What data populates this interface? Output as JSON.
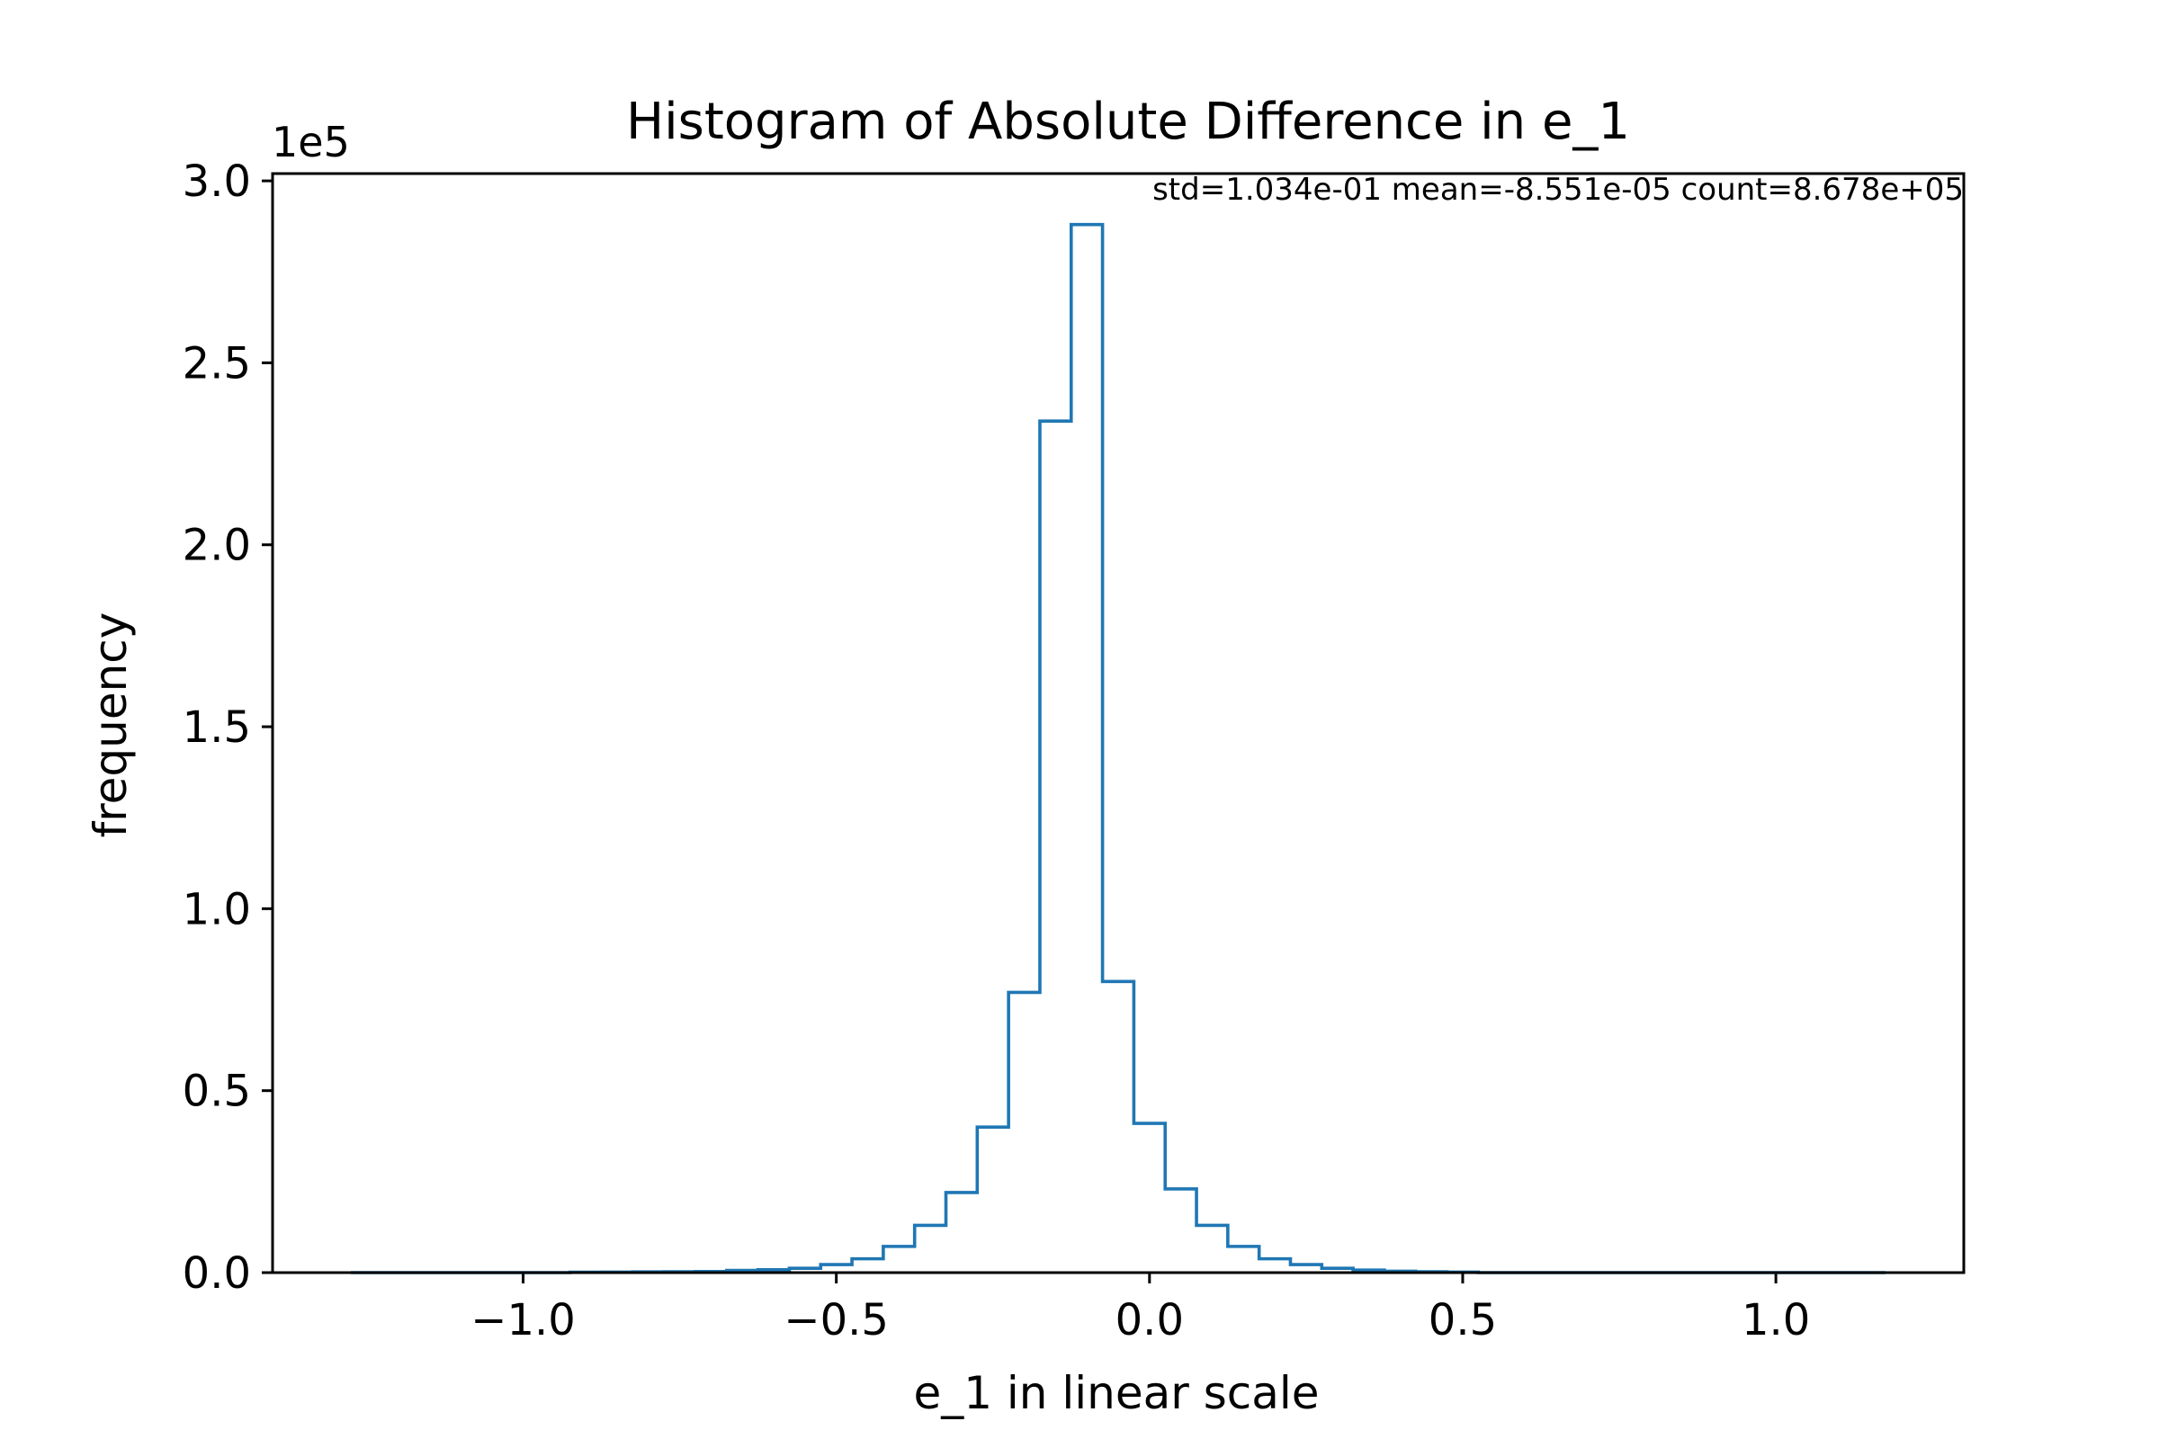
{
  "chart_data": {
    "type": "bar",
    "histtype": "step",
    "title": "Histogram of Absolute Difference in e_1",
    "xlabel": "e_1 in linear scale",
    "ylabel": "frequency",
    "y_multiplier_label": "1e5",
    "annotation": "std=1.034e-01 mean=-8.551e-05 count=8.678e+05",
    "color": "#1f77b4",
    "xlim": [
      -1.4,
      1.3
    ],
    "ylim": [
      0,
      302000
    ],
    "x_ticks": [
      {
        "value": -1.0,
        "label": "−1.0"
      },
      {
        "value": -0.5,
        "label": "−0.5"
      },
      {
        "value": 0.0,
        "label": "0.0"
      },
      {
        "value": 0.5,
        "label": "0.5"
      },
      {
        "value": 1.0,
        "label": "1.0"
      }
    ],
    "y_ticks": [
      {
        "value": 0,
        "label": "0.0"
      },
      {
        "value": 50000,
        "label": "0.5"
      },
      {
        "value": 100000,
        "label": "1.0"
      },
      {
        "value": 150000,
        "label": "1.5"
      },
      {
        "value": 200000,
        "label": "2.0"
      },
      {
        "value": 250000,
        "label": "2.5"
      },
      {
        "value": 300000,
        "label": "3.0"
      }
    ],
    "grid": false,
    "bin_start": -1.275,
    "bin_width": 0.05,
    "counts": [
      0,
      0,
      0,
      0,
      0,
      0,
      0,
      100,
      150,
      200,
      250,
      300,
      600,
      800,
      1200,
      2200,
      3800,
      7200,
      13000,
      22000,
      40000,
      77000,
      234000,
      288000,
      80000,
      41000,
      23000,
      13000,
      7200,
      3800,
      2200,
      1200,
      700,
      400,
      250,
      150,
      0,
      0,
      0,
      0,
      0,
      0,
      0,
      0,
      0,
      0,
      0,
      0,
      0
    ]
  }
}
